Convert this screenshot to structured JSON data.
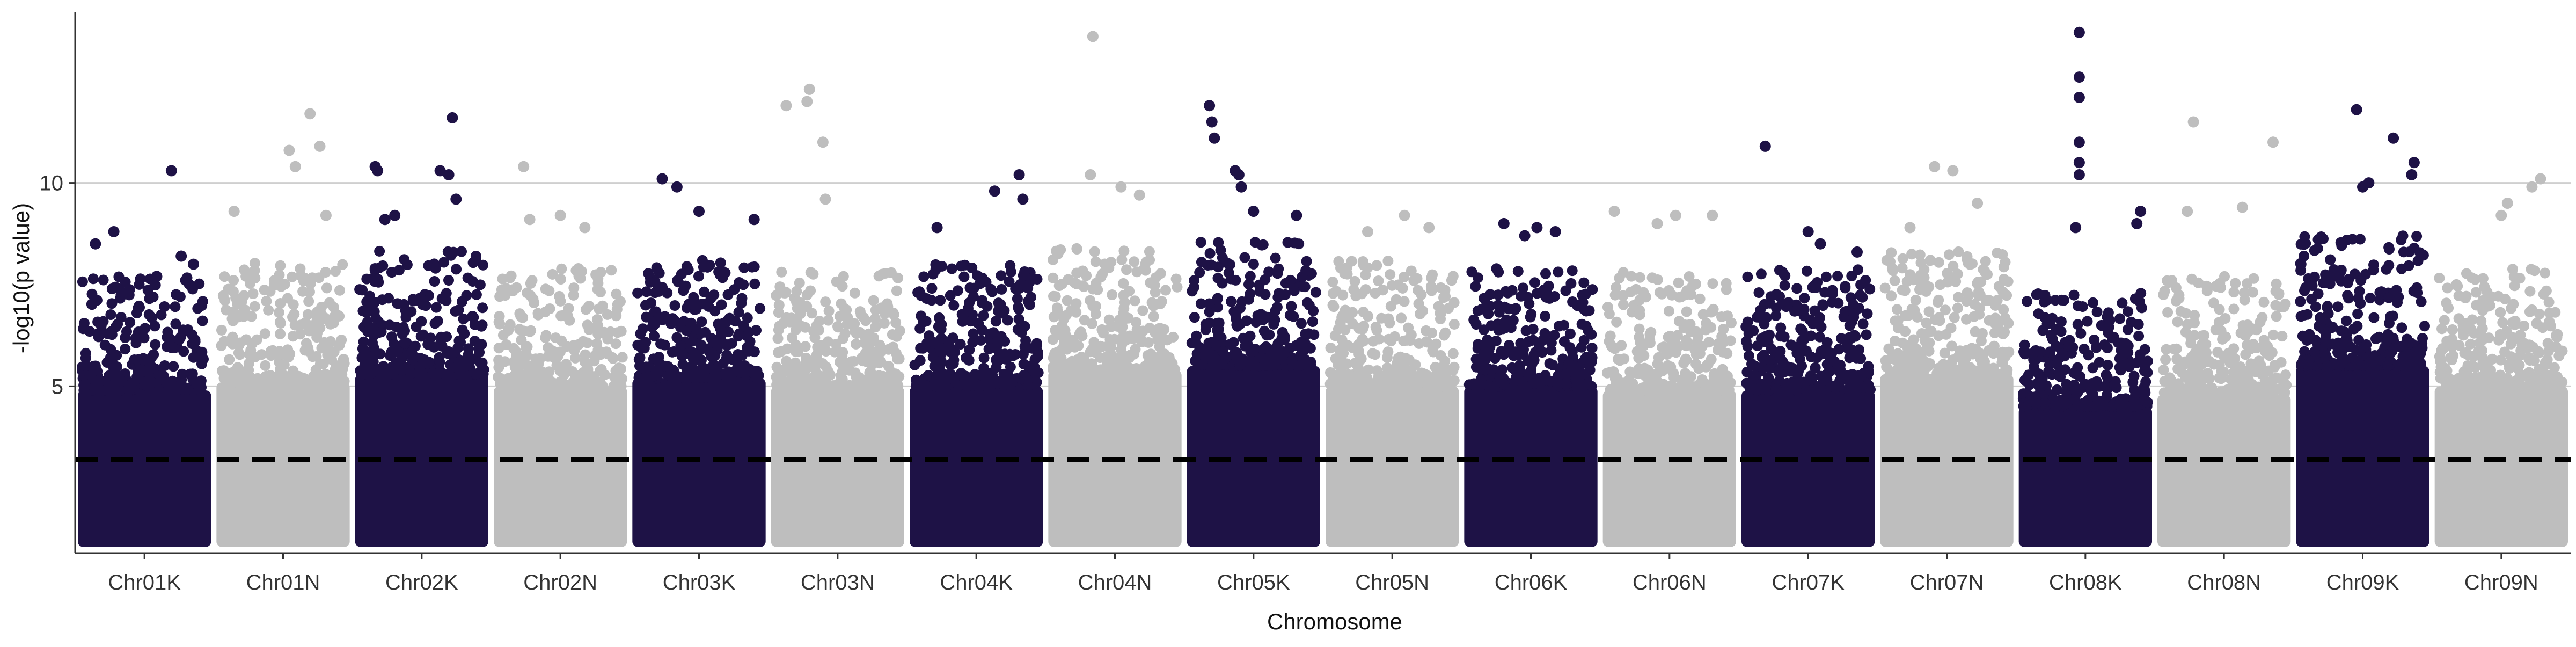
{
  "chart_data": {
    "type": "scatter",
    "title": "",
    "xlabel": "Chromosome",
    "ylabel": "-log10(p value)",
    "categories": [
      "Chr01K",
      "Chr01N",
      "Chr02K",
      "Chr02N",
      "Chr03K",
      "Chr03N",
      "Chr04K",
      "Chr04N",
      "Chr05K",
      "Chr05N",
      "Chr06K",
      "Chr06N",
      "Chr07K",
      "Chr07N",
      "Chr08K",
      "Chr08N",
      "Chr09K",
      "Chr09N"
    ],
    "ylim": [
      0.9,
      14.1
    ],
    "yticks": [
      5,
      10
    ],
    "ytick_labels": [
      "5",
      "10"
    ],
    "threshold": 3.2,
    "grid": "horizontal major",
    "colors": {
      "odd": "#1e1246",
      "even": "#bebebe",
      "threshold": "#000000",
      "grid": "#cfcfcf",
      "axis": "#333333"
    },
    "dense_band": [
      {
        "chr": "Chr01K",
        "top": 5.9,
        "spread": 1.2
      },
      {
        "chr": "Chr01N",
        "top": 6.1,
        "spread": 1.4
      },
      {
        "chr": "Chr02K",
        "top": 6.3,
        "spread": 1.5
      },
      {
        "chr": "Chr02N",
        "top": 6.0,
        "spread": 1.3
      },
      {
        "chr": "Chr03K",
        "top": 6.2,
        "spread": 1.3
      },
      {
        "chr": "Chr03N",
        "top": 6.0,
        "spread": 1.3
      },
      {
        "chr": "Chr04K",
        "top": 6.0,
        "spread": 1.4
      },
      {
        "chr": "Chr04N",
        "top": 6.4,
        "spread": 1.4
      },
      {
        "chr": "Chr05K",
        "top": 6.5,
        "spread": 1.5
      },
      {
        "chr": "Chr05N",
        "top": 6.0,
        "spread": 1.5
      },
      {
        "chr": "Chr06K",
        "top": 6.0,
        "spread": 1.3
      },
      {
        "chr": "Chr06N",
        "top": 5.9,
        "spread": 1.3
      },
      {
        "chr": "Chr07K",
        "top": 5.9,
        "spread": 1.4
      },
      {
        "chr": "Chr07N",
        "top": 6.3,
        "spread": 1.5
      },
      {
        "chr": "Chr08K",
        "top": 5.5,
        "spread": 1.2
      },
      {
        "chr": "Chr08N",
        "top": 5.8,
        "spread": 1.3
      },
      {
        "chr": "Chr09K",
        "top": 6.5,
        "spread": 1.6
      },
      {
        "chr": "Chr09N",
        "top": 6.0,
        "spread": 1.3
      }
    ],
    "top_hits": [
      {
        "chr": "Chr01K",
        "pos": 0.1,
        "y": 8.5
      },
      {
        "chr": "Chr01K",
        "pos": 0.25,
        "y": 8.8
      },
      {
        "chr": "Chr01K",
        "pos": 0.72,
        "y": 10.3
      },
      {
        "chr": "Chr01K",
        "pos": 0.8,
        "y": 8.2
      },
      {
        "chr": "Chr01K",
        "pos": 0.9,
        "y": 8.0
      },
      {
        "chr": "Chr01K",
        "pos": 0.6,
        "y": 7.7
      },
      {
        "chr": "Chr01N",
        "pos": 0.1,
        "y": 9.3
      },
      {
        "chr": "Chr01N",
        "pos": 0.55,
        "y": 10.8
      },
      {
        "chr": "Chr01N",
        "pos": 0.72,
        "y": 11.7
      },
      {
        "chr": "Chr01N",
        "pos": 0.8,
        "y": 10.9
      },
      {
        "chr": "Chr01N",
        "pos": 0.85,
        "y": 9.2
      },
      {
        "chr": "Chr01N",
        "pos": 0.6,
        "y": 10.4
      },
      {
        "chr": "Chr02K",
        "pos": 0.12,
        "y": 10.4
      },
      {
        "chr": "Chr02K",
        "pos": 0.14,
        "y": 10.3
      },
      {
        "chr": "Chr02K",
        "pos": 0.2,
        "y": 9.1
      },
      {
        "chr": "Chr02K",
        "pos": 0.28,
        "y": 9.2
      },
      {
        "chr": "Chr02K",
        "pos": 0.65,
        "y": 10.3
      },
      {
        "chr": "Chr02K",
        "pos": 0.72,
        "y": 10.2
      },
      {
        "chr": "Chr02K",
        "pos": 0.75,
        "y": 11.6
      },
      {
        "chr": "Chr02K",
        "pos": 0.78,
        "y": 9.6
      },
      {
        "chr": "Chr02N",
        "pos": 0.2,
        "y": 10.4
      },
      {
        "chr": "Chr02N",
        "pos": 0.25,
        "y": 9.1
      },
      {
        "chr": "Chr02N",
        "pos": 0.5,
        "y": 9.2
      },
      {
        "chr": "Chr02N",
        "pos": 0.7,
        "y": 8.9
      },
      {
        "chr": "Chr03K",
        "pos": 0.2,
        "y": 10.1
      },
      {
        "chr": "Chr03K",
        "pos": 0.32,
        "y": 9.9
      },
      {
        "chr": "Chr03K",
        "pos": 0.5,
        "y": 9.3
      },
      {
        "chr": "Chr03K",
        "pos": 0.95,
        "y": 9.1
      },
      {
        "chr": "Chr03N",
        "pos": 0.08,
        "y": 11.9
      },
      {
        "chr": "Chr03N",
        "pos": 0.25,
        "y": 12.0
      },
      {
        "chr": "Chr03N",
        "pos": 0.27,
        "y": 12.3
      },
      {
        "chr": "Chr03N",
        "pos": 0.38,
        "y": 11.0
      },
      {
        "chr": "Chr03N",
        "pos": 0.4,
        "y": 9.6
      },
      {
        "chr": "Chr04K",
        "pos": 0.18,
        "y": 8.9
      },
      {
        "chr": "Chr04K",
        "pos": 0.65,
        "y": 9.8
      },
      {
        "chr": "Chr04K",
        "pos": 0.85,
        "y": 10.2
      },
      {
        "chr": "Chr04K",
        "pos": 0.88,
        "y": 9.6
      },
      {
        "chr": "Chr04N",
        "pos": 0.32,
        "y": 13.6
      },
      {
        "chr": "Chr04N",
        "pos": 0.3,
        "y": 10.2
      },
      {
        "chr": "Chr04N",
        "pos": 0.55,
        "y": 9.9
      },
      {
        "chr": "Chr04N",
        "pos": 0.7,
        "y": 9.7
      },
      {
        "chr": "Chr05K",
        "pos": 0.14,
        "y": 11.9
      },
      {
        "chr": "Chr05K",
        "pos": 0.16,
        "y": 11.5
      },
      {
        "chr": "Chr05K",
        "pos": 0.18,
        "y": 11.1
      },
      {
        "chr": "Chr05K",
        "pos": 0.35,
        "y": 10.3
      },
      {
        "chr": "Chr05K",
        "pos": 0.38,
        "y": 10.2
      },
      {
        "chr": "Chr05K",
        "pos": 0.4,
        "y": 9.9
      },
      {
        "chr": "Chr05K",
        "pos": 0.5,
        "y": 9.3
      },
      {
        "chr": "Chr05K",
        "pos": 0.85,
        "y": 9.2
      },
      {
        "chr": "Chr05N",
        "pos": 0.3,
        "y": 8.8
      },
      {
        "chr": "Chr05N",
        "pos": 0.6,
        "y": 9.2
      },
      {
        "chr": "Chr05N",
        "pos": 0.8,
        "y": 8.9
      },
      {
        "chr": "Chr06K",
        "pos": 0.28,
        "y": 9.0
      },
      {
        "chr": "Chr06K",
        "pos": 0.45,
        "y": 8.7
      },
      {
        "chr": "Chr06K",
        "pos": 0.55,
        "y": 8.9
      },
      {
        "chr": "Chr06K",
        "pos": 0.7,
        "y": 8.8
      },
      {
        "chr": "Chr06N",
        "pos": 0.05,
        "y": 9.3
      },
      {
        "chr": "Chr06N",
        "pos": 0.4,
        "y": 9.0
      },
      {
        "chr": "Chr06N",
        "pos": 0.55,
        "y": 9.2
      },
      {
        "chr": "Chr06N",
        "pos": 0.85,
        "y": 9.2
      },
      {
        "chr": "Chr07K",
        "pos": 0.15,
        "y": 10.9
      },
      {
        "chr": "Chr07K",
        "pos": 0.5,
        "y": 8.8
      },
      {
        "chr": "Chr07K",
        "pos": 0.6,
        "y": 8.5
      },
      {
        "chr": "Chr07K",
        "pos": 0.9,
        "y": 8.3
      },
      {
        "chr": "Chr07N",
        "pos": 0.4,
        "y": 10.4
      },
      {
        "chr": "Chr07N",
        "pos": 0.55,
        "y": 10.3
      },
      {
        "chr": "Chr07N",
        "pos": 0.75,
        "y": 9.5
      },
      {
        "chr": "Chr07N",
        "pos": 0.2,
        "y": 8.9
      },
      {
        "chr": "Chr08K",
        "pos": 0.45,
        "y": 13.7
      },
      {
        "chr": "Chr08K",
        "pos": 0.45,
        "y": 12.6
      },
      {
        "chr": "Chr08K",
        "pos": 0.45,
        "y": 12.1
      },
      {
        "chr": "Chr08K",
        "pos": 0.45,
        "y": 11.0
      },
      {
        "chr": "Chr08K",
        "pos": 0.45,
        "y": 10.5
      },
      {
        "chr": "Chr08K",
        "pos": 0.45,
        "y": 10.2
      },
      {
        "chr": "Chr08K",
        "pos": 0.42,
        "y": 8.9
      },
      {
        "chr": "Chr08K",
        "pos": 0.95,
        "y": 9.3
      },
      {
        "chr": "Chr08K",
        "pos": 0.92,
        "y": 9.0
      },
      {
        "chr": "Chr08N",
        "pos": 0.25,
        "y": 11.5
      },
      {
        "chr": "Chr08N",
        "pos": 0.65,
        "y": 9.4
      },
      {
        "chr": "Chr08N",
        "pos": 0.9,
        "y": 11.0
      },
      {
        "chr": "Chr08N",
        "pos": 0.2,
        "y": 9.3
      },
      {
        "chr": "Chr09K",
        "pos": 0.45,
        "y": 11.8
      },
      {
        "chr": "Chr09K",
        "pos": 0.55,
        "y": 10.0
      },
      {
        "chr": "Chr09K",
        "pos": 0.5,
        "y": 9.9
      },
      {
        "chr": "Chr09K",
        "pos": 0.75,
        "y": 11.1
      },
      {
        "chr": "Chr09K",
        "pos": 0.92,
        "y": 10.5
      },
      {
        "chr": "Chr09K",
        "pos": 0.9,
        "y": 10.2
      },
      {
        "chr": "Chr09N",
        "pos": 0.55,
        "y": 9.5
      },
      {
        "chr": "Chr09N",
        "pos": 0.75,
        "y": 9.9
      },
      {
        "chr": "Chr09N",
        "pos": 0.82,
        "y": 10.1
      },
      {
        "chr": "Chr09N",
        "pos": 0.5,
        "y": 9.2
      }
    ]
  }
}
